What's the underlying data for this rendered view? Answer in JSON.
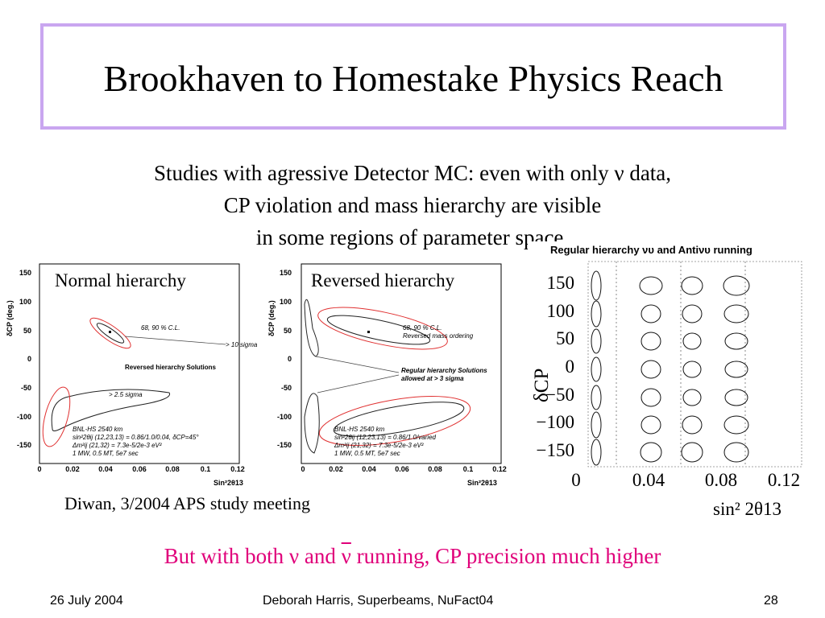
{
  "slide": {
    "title": "Brookhaven to Homestake Physics Reach",
    "intro_lines": [
      "Studies with agressive Detector MC:  even with only ν data,",
      "CP violation and mass hierarchy are visible",
      "in some regions of parameter space."
    ],
    "credit": "Diwan, 3/2004 APS study meeting",
    "conclusion_pre": "But with both ν and ",
    "conclusion_bar": "ν",
    "conclusion_post": " running, CP precision much higher",
    "colors": {
      "title_border": "#c9a6f0",
      "conclusion": "#e0007a",
      "contour_inner": "#222222",
      "contour_outer": "#e03030"
    }
  },
  "plot_normal": {
    "label": "Normal hierarchy",
    "ylabel": "δCP (deg.)",
    "xlabel": "Sin²2θ13",
    "y_ticks": [
      "150",
      "100",
      "50",
      "0",
      "-50",
      "-100",
      "-150"
    ],
    "x_ticks": [
      "0",
      "0.02",
      "0.04",
      "0.06",
      "0.08",
      "0.1",
      "0.12"
    ],
    "cl_note": "68, 90 % C.L.",
    "sigma_note": "> 10 sigma",
    "rev_note": "Reversed hierarchy Solutions",
    "sigma2_note": "> 2.5 sigma",
    "info": [
      "BNL-HS  2540 km",
      "sin²2θij (12,23,13) = 0.86/1.0/0.04, δCP=45°",
      "Δm²ij (21,32) = 7.3e-5/2e-3 eV²",
      "1 MW, 0.5 MT, 5e7 sec"
    ]
  },
  "plot_reversed": {
    "label": "Reversed hierarchy",
    "ylabel": "δCP (deg.)",
    "xlabel": "Sin²2θ13",
    "y_ticks": [
      "150",
      "100",
      "50",
      "0",
      "-50",
      "-100",
      "-150"
    ],
    "x_ticks": [
      "0",
      "0.02",
      "0.04",
      "0.06",
      "0.08",
      "0.1",
      "0.12"
    ],
    "cl_note": "68, 90 % C.L.",
    "cl_note2": "Reversed mass ordering",
    "reg_note": "Regular hierarchy Solutions",
    "reg_note2": "allowed at > 3 sigma",
    "info": [
      "BNL-HS  2540 km",
      "sin²2θij (12,23,13) = 0.86/1.0/varied",
      "Δm²ij (21,32) = 7.3e-5/2e-3 eV²",
      "1 MW, 0.5 MT, 5e7 sec"
    ]
  },
  "plot_running": {
    "title": "Regular hierarchy νυ and Antiνυ running",
    "ylabel": "δCP",
    "xlabel": "sin² 2θ13",
    "y_ticks": [
      "150",
      "100",
      "50",
      "0",
      "−50",
      "−100",
      "−150"
    ],
    "x_ticks": [
      "0",
      "0.04",
      "0.08",
      "0.12"
    ]
  },
  "footer": {
    "date": "26 July 2004",
    "center": "Deborah Harris, Superbeams, NuFact04",
    "page": "28"
  }
}
